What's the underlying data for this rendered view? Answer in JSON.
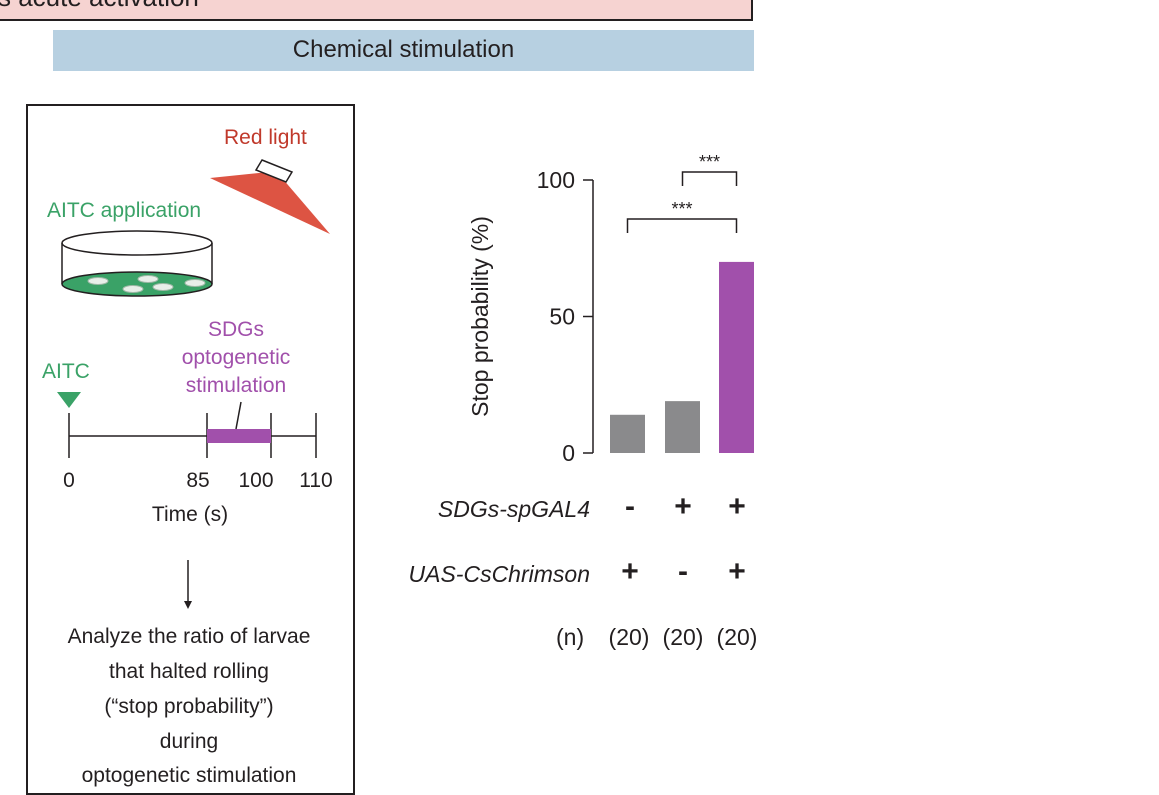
{
  "banner_top": "s acute activation",
  "banner_chemical": "Chemical stimulation",
  "schematic": {
    "red_light_label": "Red light",
    "aitc_application_label": "AITC application",
    "aitc_marker_label": "AITC",
    "stim_label_line1": "SDGs",
    "stim_label_line2": "optogenetic",
    "stim_label_line3": "stimulation",
    "timeline_ticks": [
      "0",
      "85",
      "100",
      "110"
    ],
    "timeline_axis_label": "Time (s)",
    "analysis_lines": [
      "Analyze the ratio of larvae",
      "that halted rolling",
      "(“stop probability”)",
      "during",
      "optogenetic stimulation"
    ]
  },
  "genotype_table": {
    "row1_label": "SDGs-spGAL4",
    "row1_signs": [
      "-",
      "+",
      "+"
    ],
    "row2_label": "UAS-CsChrimson",
    "row2_signs": [
      "+",
      "-",
      "+"
    ],
    "n_label": "(n)",
    "n_values": [
      "(20)",
      "(20)",
      "(20)"
    ]
  },
  "colors": {
    "gray_bar": "#8a8a8c",
    "purple_bar": "#a150ab",
    "green": "#3aa267",
    "red": "#c0392b"
  },
  "chart_data": {
    "type": "bar",
    "categories": [
      "SDGs-spGAL4 - / UAS-CsChrimson +",
      "SDGs-spGAL4 + / UAS-CsChrimson -",
      "SDGs-spGAL4 + / UAS-CsChrimson +"
    ],
    "values": [
      14,
      19,
      70
    ],
    "ylabel": "Stop probability (%)",
    "ylim": [
      0,
      100
    ],
    "yticks": [
      "0",
      "50",
      "100"
    ],
    "significance": [
      {
        "pair": [
          1,
          2
        ],
        "label": "***"
      },
      {
        "pair": [
          0,
          2
        ],
        "label": "***"
      }
    ],
    "grid": false
  }
}
